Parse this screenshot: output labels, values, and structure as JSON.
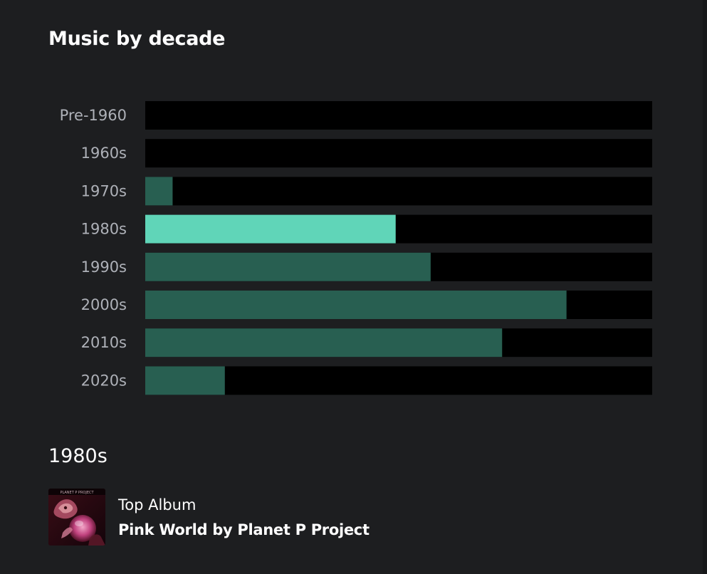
{
  "page": {
    "title": "Music by decade"
  },
  "chart_data": {
    "type": "bar",
    "orientation": "horizontal",
    "categories": [
      "Pre-1960",
      "1960s",
      "1970s",
      "1980s",
      "1990s",
      "2000s",
      "2010s",
      "2020s"
    ],
    "values": [
      0,
      0,
      0.054,
      0.494,
      0.563,
      0.831,
      0.704,
      0.157
    ],
    "value_scale": "fraction of max track",
    "xlim": [
      0,
      1
    ],
    "selected_category": "1980s",
    "grid": false,
    "legend": "none",
    "colors": {
      "track": "#000000",
      "bar": "#285f51",
      "selected_bar": "#60d5b8",
      "label": "#aeb1b8"
    }
  },
  "detail": {
    "heading": "1980s",
    "top_album_label": "Top Album",
    "top_album_title": "Pink World by Planet P Project",
    "cover_icon": "album-cover"
  }
}
